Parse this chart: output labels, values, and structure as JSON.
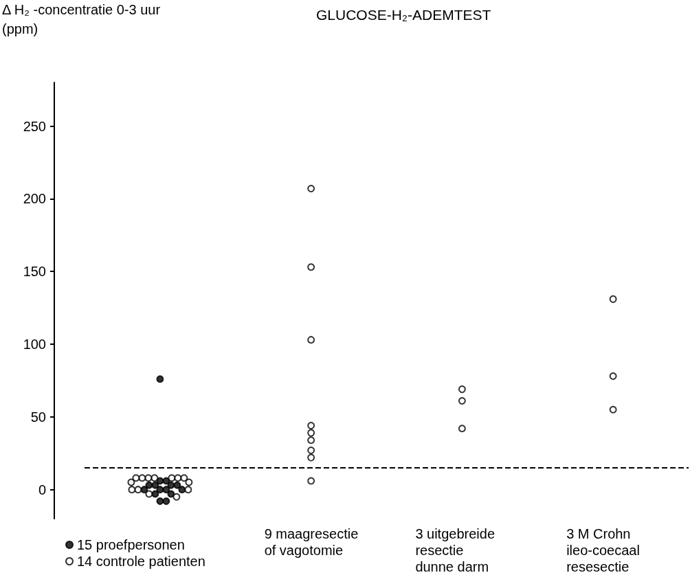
{
  "chart_data": {
    "type": "scatter",
    "title": "GLUCOSE-H₂-ADEMTEST",
    "ylabel": "Δ H₂ -concentratie 0-3 uur\n(ppm)",
    "categories": [
      null,
      "9 maagresectie\nof vagotomie",
      "3 uitgebreide\nresectie\ndunne darm",
      "3 M Crohn\nileo-coecaal\nresesectie"
    ],
    "series": [
      {
        "name": "15 proefpersonen",
        "color": "#000000",
        "marker": "circle",
        "x": [
          null,
          null,
          null,
          null,
          null,
          null,
          null,
          null,
          null,
          null,
          null,
          null,
          null,
          null,
          null
        ],
        "values": [
          76,
          6,
          6,
          3,
          3,
          3,
          3,
          0,
          0,
          0,
          0,
          -3,
          -3,
          -8,
          -8
        ]
      },
      {
        "name": "14 controle patienten",
        "color": "#ffffff",
        "marker": "circle",
        "x": [
          null,
          null,
          null,
          null,
          null,
          null,
          null,
          null,
          null,
          null,
          null,
          null,
          null,
          null
        ],
        "values": [
          8,
          8,
          8,
          8,
          8,
          8,
          8,
          5,
          5,
          0,
          0,
          0,
          -3,
          -5
        ]
      },
      {
        "color": "#ffffff",
        "marker": "circle",
        "x": [
          "9 maagresectie\nof vagotomie",
          "9 maagresectie\nof vagotomie",
          "9 maagresectie\nof vagotomie",
          "9 maagresectie\nof vagotomie",
          "9 maagresectie\nof vagotomie",
          "9 maagresectie\nof vagotomie",
          "9 maagresectie\nof vagotomie",
          "9 maagresectie\nof vagotomie",
          "9 maagresectie\nof vagotomie",
          "3 uitgebreide\nresectie\ndunne darm",
          "3 uitgebreide\nresectie\ndunne darm",
          "3 uitgebreide\nresectie\ndunne darm",
          "3 M Crohn\nileo-coecaal\nresesectie",
          "3 M Crohn\nileo-coecaal\nresesectie",
          "3 M Crohn\nileo-coecaal\nresesectie"
        ],
        "values": [
          207,
          153,
          103,
          44,
          39,
          34,
          27,
          22,
          6,
          69,
          61,
          42,
          131,
          78,
          55
        ]
      }
    ],
    "ylim": [
      -20,
      280
    ],
    "yticks": [
      0,
      50,
      100,
      150,
      200,
      250
    ],
    "grid": false,
    "legend": "bottom left",
    "ref_lines": [
      {
        "axis": "y",
        "value": 15,
        "color": "#000000",
        "line_style": "dashed"
      }
    ]
  }
}
